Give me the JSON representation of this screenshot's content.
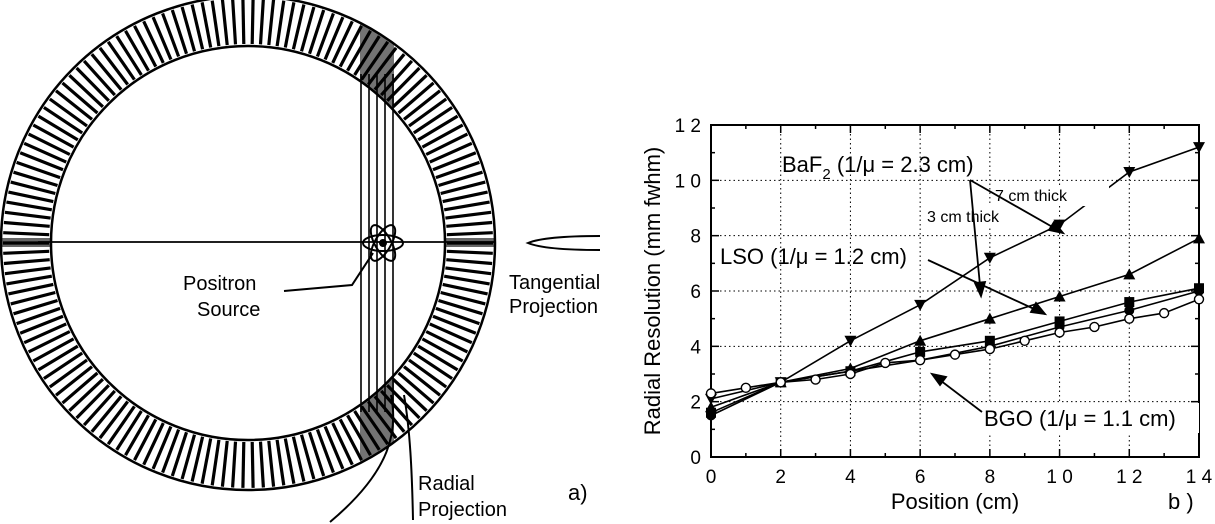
{
  "panel_a": {
    "label": "a)",
    "positron_source": [
      "Positron",
      "Source"
    ],
    "tangential_projection": [
      "Tangential",
      "Projection"
    ],
    "radial_projection": [
      "Radial",
      "Projection"
    ]
  },
  "panel_b": {
    "label": "b )",
    "annotations": {
      "baf2": "BaF",
      "baf2_subscript": "2",
      "baf2_rest": " (1/μ = 2.3 cm)",
      "seven_cm": "7 cm thick",
      "three_cm": "3 cm thick",
      "lso": "LSO (1/μ = 1.2 cm)",
      "bgo": "BGO (1/μ = 1.1 cm)"
    }
  },
  "chart_data": {
    "type": "line",
    "title": "",
    "xlabel": "Position (cm)",
    "ylabel": "Radial Resolution (mm fwhm)",
    "xlim": [
      0,
      14
    ],
    "ylim": [
      0,
      12
    ],
    "xticks": [
      0,
      2,
      4,
      6,
      8,
      10,
      12,
      14
    ],
    "yticks": [
      0,
      2,
      4,
      6,
      8,
      10,
      12
    ],
    "xtick_labels": [
      "0",
      "2",
      "4",
      "6",
      "8",
      "1 0",
      "1 2",
      "1 4"
    ],
    "ytick_labels": [
      "0",
      "2",
      "4",
      "6",
      "8",
      "1 0",
      "1 2"
    ],
    "grid": true,
    "series": [
      {
        "marker": "triangle-down",
        "x": [
          0,
          2,
          4,
          6,
          8,
          10,
          12,
          14
        ],
        "y": [
          2.1,
          2.7,
          4.2,
          5.5,
          7.2,
          8.4,
          10.3,
          11.2
        ]
      },
      {
        "marker": "triangle-up",
        "x": [
          0,
          2,
          4,
          6,
          8,
          10,
          12,
          14
        ],
        "y": [
          1.8,
          2.7,
          3.2,
          4.2,
          5.0,
          5.8,
          6.6,
          7.9
        ]
      },
      {
        "marker": "square",
        "x": [
          0,
          2,
          4,
          6,
          8,
          10,
          12,
          14
        ],
        "y": [
          1.6,
          2.7,
          3.1,
          3.8,
          4.2,
          4.9,
          5.6,
          6.1
        ]
      },
      {
        "marker": "circle-filled",
        "x": [
          0,
          2,
          4,
          6,
          8,
          10,
          12,
          14
        ],
        "y": [
          1.5,
          2.7,
          3.1,
          3.5,
          4.0,
          4.7,
          5.3,
          6.0
        ]
      },
      {
        "marker": "circle-open",
        "x": [
          0,
          1,
          2,
          3,
          4,
          5,
          6,
          7,
          8,
          9,
          10,
          11,
          12,
          13,
          14
        ],
        "y": [
          2.3,
          2.5,
          2.7,
          2.8,
          3.0,
          3.4,
          3.5,
          3.7,
          3.9,
          4.2,
          4.5,
          4.7,
          5.0,
          5.2,
          5.7
        ]
      }
    ]
  }
}
